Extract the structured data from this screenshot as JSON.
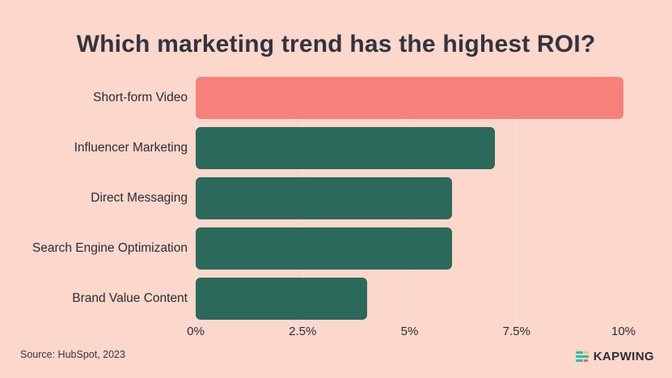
{
  "title": "Which marketing trend has the highest ROI?",
  "source_note": "Source: HubSpot, 2023",
  "logo": {
    "text": "KAPWING",
    "icon_name": "kapwing-stripes-icon",
    "stripe_colors": {
      "teal": "#2bbfa4",
      "yellow": "#f7cf45",
      "pink": "#ef5b81"
    }
  },
  "colors": {
    "background": "#fbd7cc",
    "bar_highlight": "#f5817a",
    "bar_default": "#2b695a",
    "gridline": "#f6e5de",
    "title_text": "#33333e",
    "label_text": "#2c2c33"
  },
  "chart_data": {
    "type": "bar",
    "orientation": "horizontal",
    "title": "Which marketing trend has the highest ROI?",
    "categories": [
      "Short-form Video",
      "Influencer Marketing",
      "Direct Messaging",
      "Search Engine Optimization",
      "Brand Value Content"
    ],
    "values": [
      10,
      7,
      6,
      6,
      4
    ],
    "unit": "%",
    "highlight_index": 0,
    "xlim": [
      0,
      10
    ],
    "x_tick_labels": [
      "0%",
      "2.5%",
      "5%",
      "7.5%",
      "10%"
    ],
    "x_tick_values": [
      0,
      2.5,
      5,
      7.5,
      10
    ],
    "grid": true,
    "legend": false
  }
}
